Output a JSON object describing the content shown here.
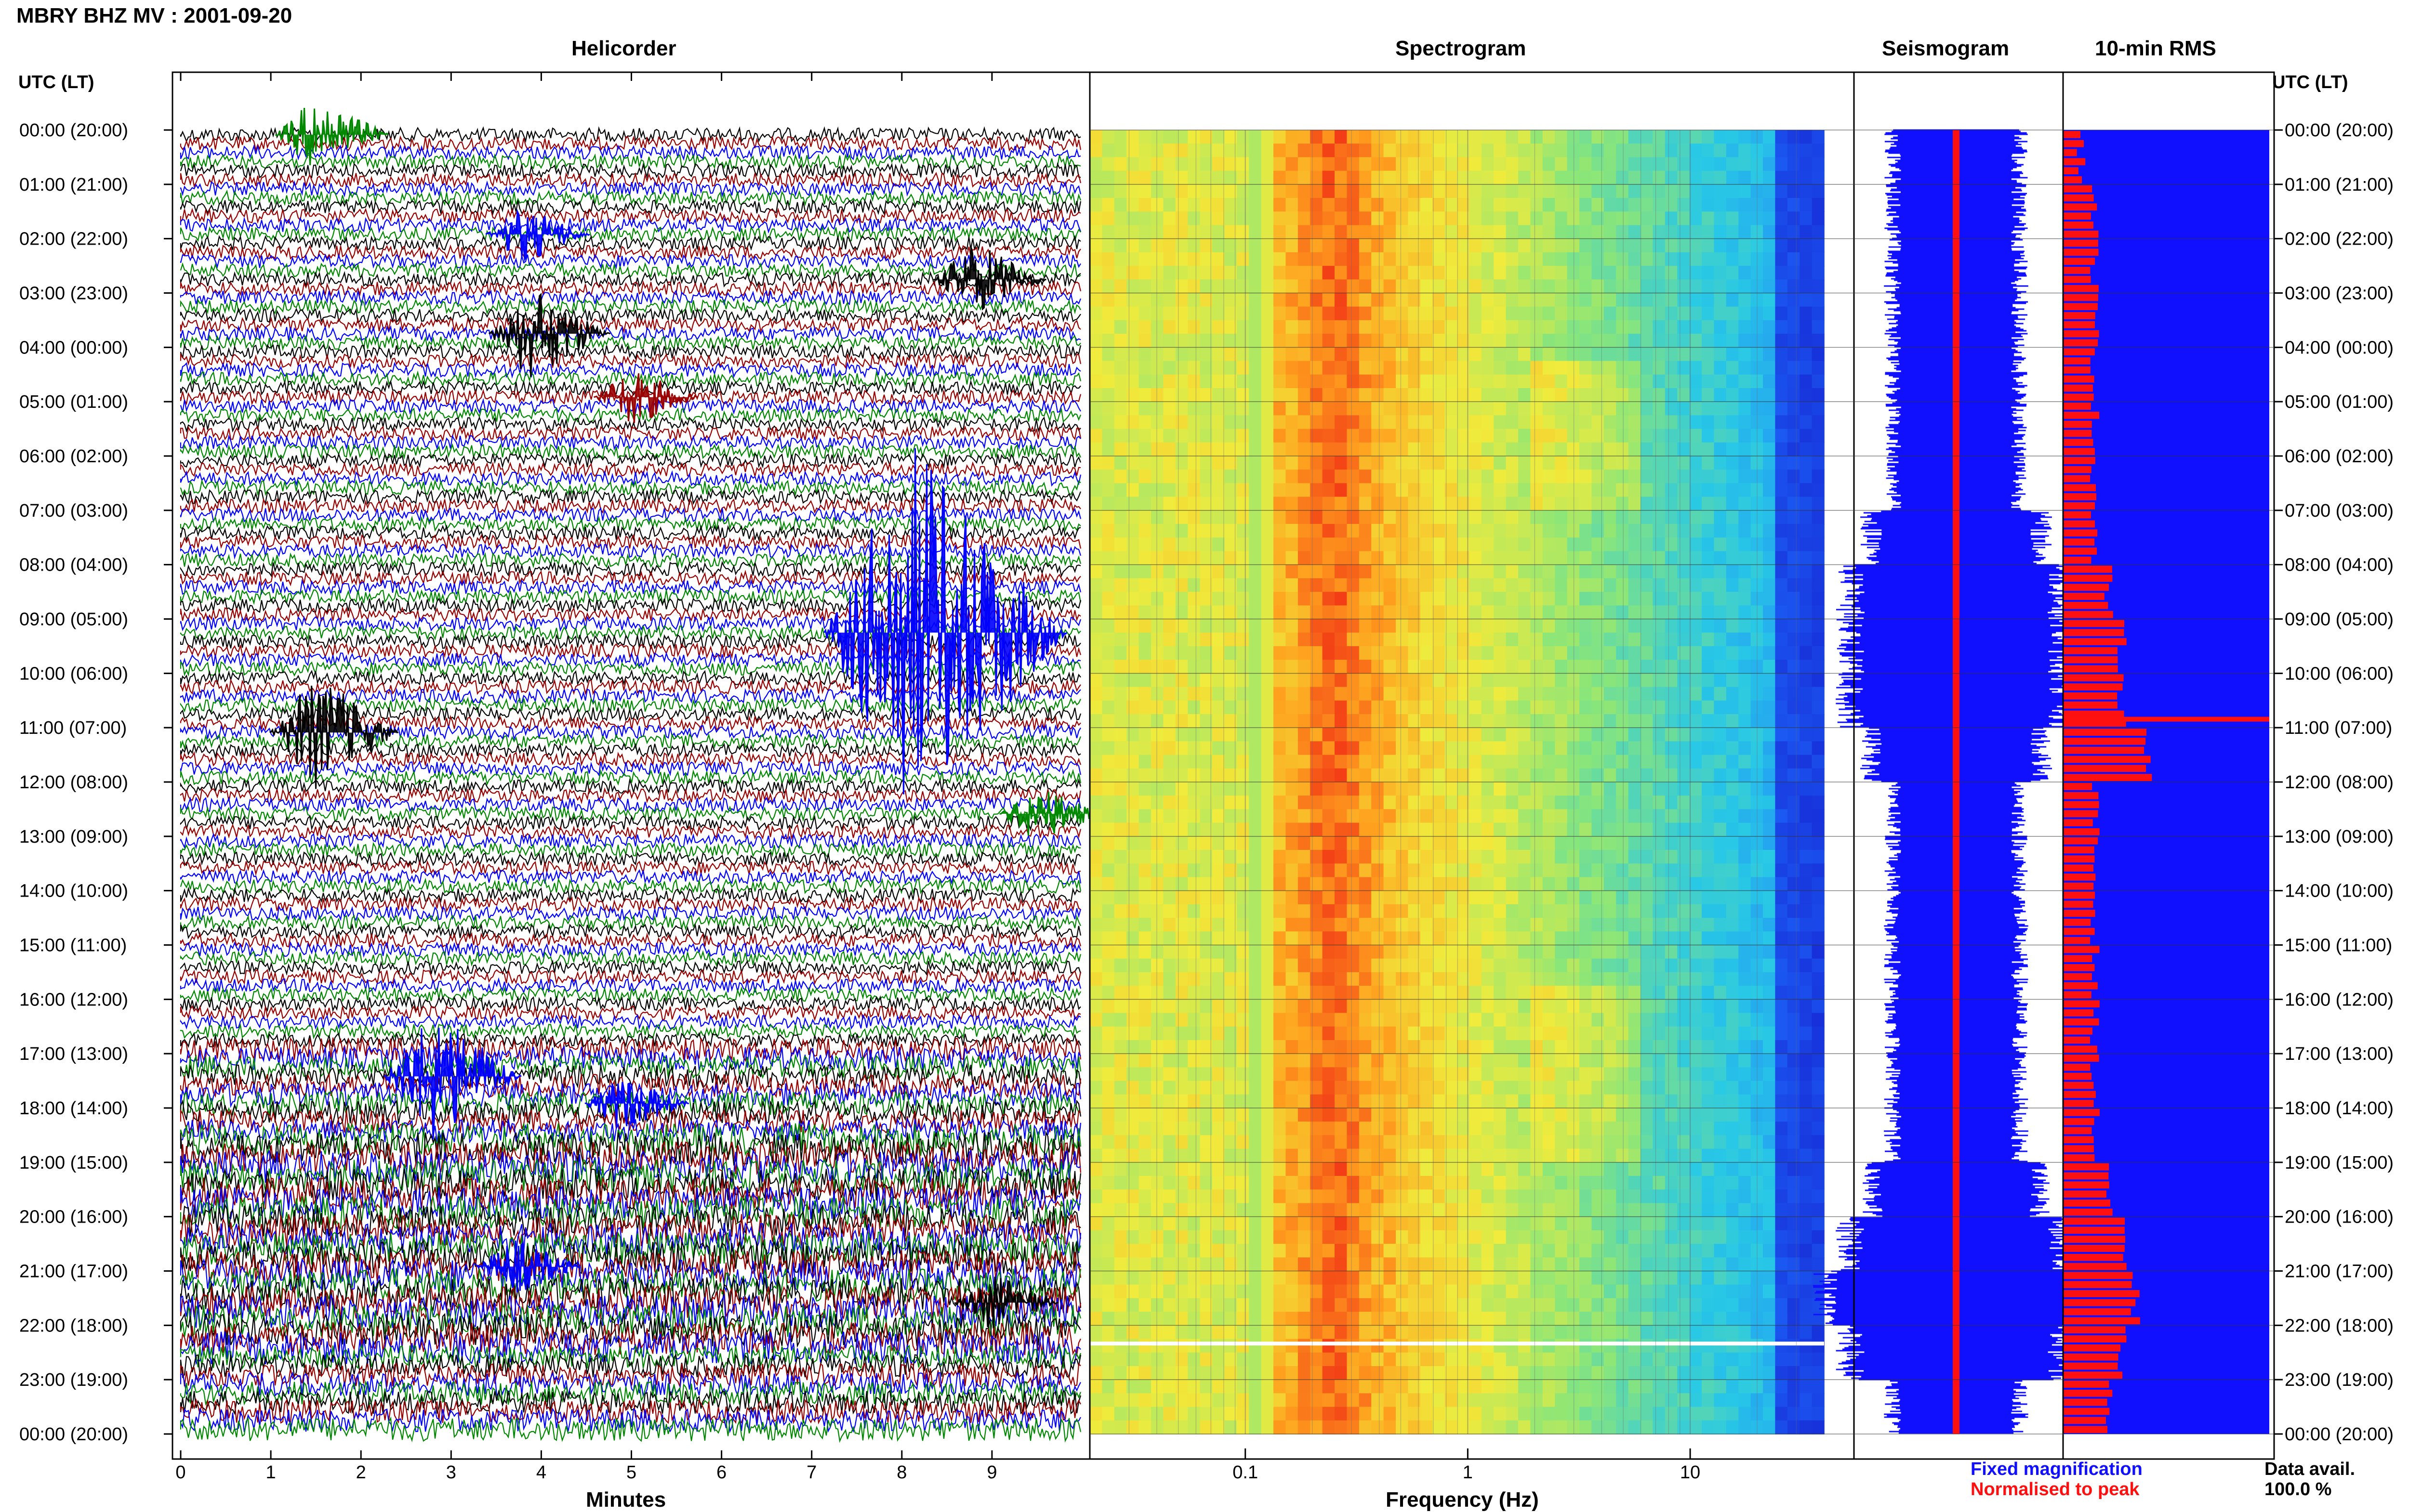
{
  "header": {
    "title": "MBRY BHZ MV : 2001-09-20"
  },
  "panels": {
    "helicorder": "Helicorder",
    "spectrogram": "Spectrogram",
    "seismogram": "Seismogram",
    "rms": "10-min RMS"
  },
  "axis_titles": {
    "left": "UTC (LT)",
    "right": "UTC (LT)"
  },
  "time_labels": [
    "00:00 (20:00)",
    "01:00 (21:00)",
    "02:00 (22:00)",
    "03:00 (23:00)",
    "04:00 (00:00)",
    "05:00 (01:00)",
    "06:00 (02:00)",
    "07:00 (03:00)",
    "08:00 (04:00)",
    "09:00 (05:00)",
    "10:00 (06:00)",
    "11:00 (07:00)",
    "12:00 (08:00)",
    "13:00 (09:00)",
    "14:00 (10:00)",
    "15:00 (11:00)",
    "16:00 (12:00)",
    "17:00 (13:00)",
    "18:00 (14:00)",
    "19:00 (15:00)",
    "20:00 (16:00)",
    "21:00 (17:00)",
    "22:00 (18:00)",
    "23:00 (19:00)",
    "00:00 (20:00)"
  ],
  "legend": {
    "fixed": "Fixed magnification",
    "normalised": "Normalised to peak"
  },
  "data_avail": {
    "label": "Data avail.",
    "value": "100.0 %"
  },
  "colors": {
    "blue": "#0000ff",
    "red": "#ff0000",
    "green": "#008800",
    "darkred": "#990000",
    "black": "#000000"
  },
  "chart_data": [
    {
      "type": "line",
      "title": "Helicorder",
      "xlabel": "Minutes",
      "xticks": [
        "0",
        "1",
        "2",
        "3",
        "4",
        "5",
        "6",
        "7",
        "8",
        "9"
      ],
      "xlim": [
        0,
        10
      ],
      "rows": 144,
      "series_colors": [
        "black",
        "darkred",
        "blue",
        "green"
      ],
      "events": [
        {
          "row": 0,
          "minute": 1.5,
          "amplitude": 4,
          "color": "green"
        },
        {
          "row": 11,
          "minute": 3.8,
          "amplitude": 3,
          "color": "blue"
        },
        {
          "row": 16,
          "minute": 8.8,
          "amplitude": 4,
          "color": "black"
        },
        {
          "row": 22,
          "minute": 3.9,
          "amplitude": 5,
          "color": "black"
        },
        {
          "row": 29,
          "minute": 5.0,
          "amplitude": 3,
          "color": "darkred"
        },
        {
          "row": 55,
          "minute": 8.1,
          "amplitude": 20,
          "color": "blue"
        },
        {
          "row": 66,
          "minute": 1.5,
          "amplitude": 6,
          "color": "black"
        },
        {
          "row": 75,
          "minute": 9.5,
          "amplitude": 3,
          "color": "green"
        },
        {
          "row": 104,
          "minute": 2.8,
          "amplitude": 7,
          "color": "blue"
        },
        {
          "row": 107,
          "minute": 4.9,
          "amplitude": 3,
          "color": "blue"
        },
        {
          "row": 125,
          "minute": 3.7,
          "amplitude": 3,
          "color": "blue"
        },
        {
          "row": 129,
          "minute": 9.0,
          "amplitude": 3,
          "color": "black"
        }
      ]
    },
    {
      "type": "heatmap",
      "title": "Spectrogram",
      "xlabel": "Frequency (Hz)",
      "xscale": "log",
      "xticks": [
        "0.1",
        "1",
        "10"
      ],
      "xlim": [
        0.02,
        40
      ],
      "peak_band_hz": [
        0.2,
        0.4
      ],
      "colormap": [
        "blue",
        "cyan",
        "yellow",
        "orange",
        "red"
      ]
    },
    {
      "type": "line",
      "title": "Seismogram",
      "note": "Fixed magnification (blue) / Normalised to peak (red)",
      "envelope": [
        3,
        3,
        3,
        3,
        3,
        3,
        3,
        4,
        5,
        5,
        5,
        4,
        3,
        3,
        3,
        3,
        3,
        3,
        3,
        4,
        5,
        6,
        5,
        3
      ]
    },
    {
      "type": "bar",
      "title": "10-min RMS",
      "orientation": "horizontal",
      "values": [
        1,
        2,
        2,
        2,
        2,
        2,
        2,
        2,
        3,
        4,
        4,
        6,
        2,
        2,
        2,
        2,
        2,
        2,
        2,
        3,
        4,
        5,
        4,
        3
      ]
    }
  ]
}
